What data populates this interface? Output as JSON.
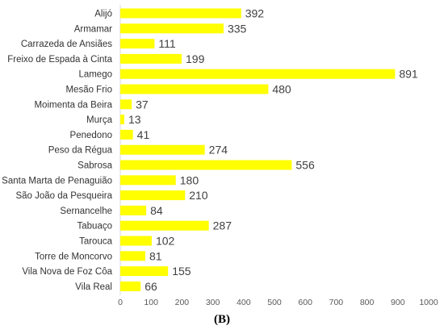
{
  "chart_data": {
    "type": "bar",
    "orientation": "horizontal",
    "title": "",
    "xlabel": "",
    "ylabel": "",
    "xlim": [
      0,
      1000
    ],
    "x_ticks": [
      0,
      100,
      200,
      300,
      400,
      500,
      600,
      700,
      800,
      900,
      1000
    ],
    "grid": false,
    "bar_color": "#FFFF00",
    "categories": [
      "Alijó",
      "Armamar",
      "Carrazeda  de Ansiães",
      "Freixo de Espada à Cinta",
      "Lamego",
      "Mesão Frio",
      "Moimenta da Beira",
      "Murça",
      "Penedono",
      "Peso da Régua",
      "Sabrosa",
      "Santa Marta  de Penaguião",
      "São João da Pesqueira",
      "Sernancelhe",
      "Tabuaço",
      "Tarouca",
      "Torre  de Moncorvo",
      "Vila Nova de Foz Côa",
      "Vila Real"
    ],
    "values": [
      392,
      335,
      111,
      199,
      891,
      480,
      37,
      13,
      41,
      274,
      556,
      180,
      210,
      84,
      287,
      102,
      81,
      155,
      66
    ]
  },
  "panel_label": "(B)"
}
